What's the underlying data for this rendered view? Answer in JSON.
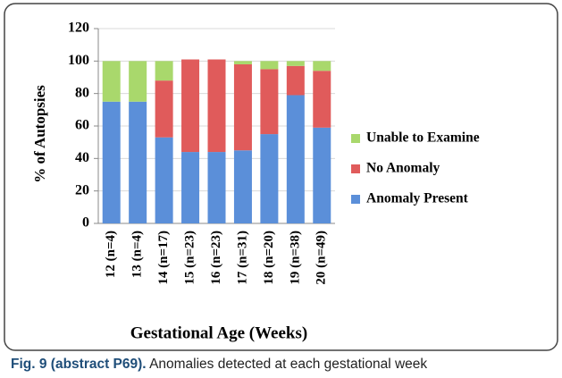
{
  "chart_data": {
    "type": "stacked-bar",
    "categories": [
      "12 (n=4)",
      "13 (n=4)",
      "14 (n=17)",
      "15 (n=23)",
      "16 (n=23)",
      "17 (n=31)",
      "18 (n=20)",
      "19 (n=38)",
      "20 (n=49)"
    ],
    "series": [
      {
        "name": "Anomaly Present",
        "color": "#5b8fd9",
        "values": [
          75,
          75,
          53,
          44,
          44,
          45,
          55,
          79,
          59
        ]
      },
      {
        "name": "No Anomaly",
        "color": "#e05b5b",
        "values": [
          0,
          0,
          35,
          57,
          57,
          53,
          40,
          18,
          35
        ]
      },
      {
        "name": "Unable to Examine",
        "color": "#a9d86c",
        "values": [
          25,
          25,
          12,
          0,
          0,
          2,
          5,
          3,
          6
        ]
      }
    ],
    "ylim": [
      0,
      120
    ],
    "yticks": [
      0,
      20,
      40,
      60,
      80,
      100,
      120
    ],
    "grid": true,
    "ylabel": "% of Autopsies",
    "xlabel": "Gestational Age (Weeks)"
  },
  "caption": {
    "label": "Fig. 9 (abstract P69).",
    "text": "Anomalies detected at each gestational week"
  }
}
